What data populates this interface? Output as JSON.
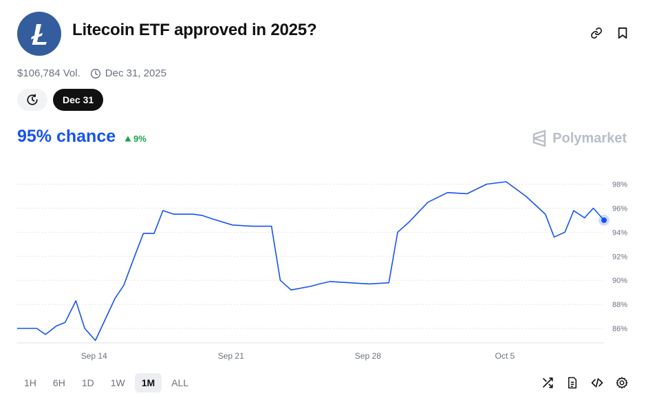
{
  "header": {
    "title": "Litecoin ETF approved in 2025?",
    "logo_icon": "litecoin-logo",
    "logo_color": "#345d9d"
  },
  "meta": {
    "volume": "$106,784 Vol.",
    "end_date": "Dec 31, 2025"
  },
  "date_pill": {
    "label": "Dec 31"
  },
  "summary": {
    "chance": "95% chance",
    "change": "9%",
    "change_color": "#16a34a"
  },
  "brand": {
    "name": "Polymarket"
  },
  "range_buttons": [
    {
      "label": "1H",
      "active": false
    },
    {
      "label": "6H",
      "active": false
    },
    {
      "label": "1D",
      "active": false
    },
    {
      "label": "1W",
      "active": false
    },
    {
      "label": "1M",
      "active": true
    },
    {
      "label": "ALL",
      "active": false
    }
  ],
  "colors": {
    "line": "#1652f0",
    "grid": "#d8dce2"
  },
  "chart_data": {
    "type": "line",
    "title": "",
    "xlabel": "",
    "ylabel": "",
    "x_ticks": [
      "Sep 14",
      "Sep 21",
      "Sep 28",
      "Oct 5"
    ],
    "x_tick_values": [
      "2025-09-14",
      "2025-09-21",
      "2025-09-28",
      "2025-10-05"
    ],
    "y_ticks": [
      86,
      88,
      90,
      92,
      94,
      96,
      98
    ],
    "y_tick_labels": [
      "86%",
      "88%",
      "90%",
      "92%",
      "94%",
      "96%",
      "98%"
    ],
    "ylim": [
      84.8,
      99
    ],
    "xlim": [
      "2025-09-10",
      "2025-10-10"
    ],
    "grid": "horizontal-dotted",
    "series": [
      {
        "values": [
          [
            "2025-09-10",
            86.0
          ],
          [
            "2025-09-11",
            86.0
          ],
          [
            "2025-09-11",
            85.5
          ],
          [
            "2025-09-12",
            86.2
          ],
          [
            "2025-09-12",
            86.5
          ],
          [
            "2025-09-13",
            88.3
          ],
          [
            "2025-09-13",
            86.0
          ],
          [
            "2025-09-14",
            85.0
          ],
          [
            "2025-09-15",
            88.5
          ],
          [
            "2025-09-15",
            89.6
          ],
          [
            "2025-09-16",
            92.0
          ],
          [
            "2025-09-16",
            93.9
          ],
          [
            "2025-09-17",
            93.9
          ],
          [
            "2025-09-17",
            95.8
          ],
          [
            "2025-09-18",
            95.5
          ],
          [
            "2025-09-19",
            95.5
          ],
          [
            "2025-09-19",
            95.4
          ],
          [
            "2025-09-20",
            95.1
          ],
          [
            "2025-09-21",
            94.6
          ],
          [
            "2025-09-22",
            94.5
          ],
          [
            "2025-09-23",
            94.5
          ],
          [
            "2025-09-23",
            90.0
          ],
          [
            "2025-09-24",
            89.2
          ],
          [
            "2025-09-25",
            89.5
          ],
          [
            "2025-09-25",
            89.7
          ],
          [
            "2025-09-26",
            89.9
          ],
          [
            "2025-09-27",
            89.8
          ],
          [
            "2025-09-28",
            89.7
          ],
          [
            "2025-09-29",
            89.8
          ],
          [
            "2025-09-29",
            94.0
          ],
          [
            "2025-09-30",
            94.8
          ],
          [
            "2025-10-01",
            96.5
          ],
          [
            "2025-10-02",
            97.3
          ],
          [
            "2025-10-03",
            97.2
          ],
          [
            "2025-10-04",
            98.0
          ],
          [
            "2025-10-05",
            98.2
          ],
          [
            "2025-10-06",
            97.0
          ],
          [
            "2025-10-07",
            95.5
          ],
          [
            "2025-10-07",
            93.6
          ],
          [
            "2025-10-08",
            94.0
          ],
          [
            "2025-10-08",
            95.8
          ],
          [
            "2025-10-09",
            95.2
          ],
          [
            "2025-10-09",
            96.0
          ],
          [
            "2025-10-10",
            95.0
          ]
        ]
      }
    ]
  }
}
